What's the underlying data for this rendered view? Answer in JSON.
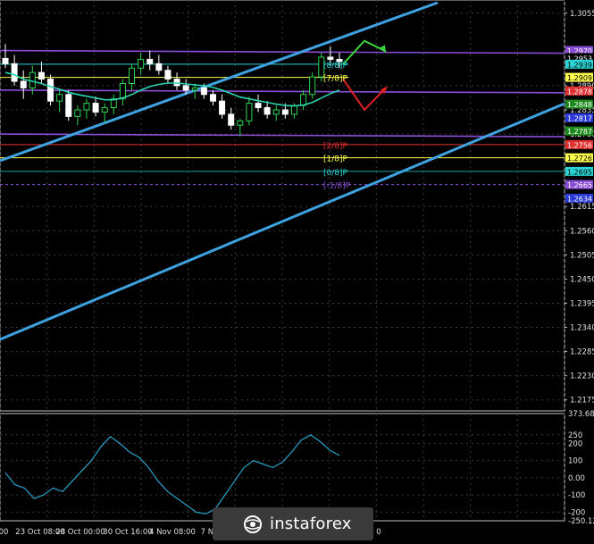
{
  "chart_data": [
    {
      "type": "candlestick",
      "symbol": "GBP/USD",
      "timeframe": "4H",
      "ylim": [
        1.215,
        1.3085
      ],
      "y_ticks": [
        "1.3055",
        "1.2890",
        "1.2835",
        "1.2780",
        "1.2615",
        "1.2560",
        "1.2505",
        "1.2450",
        "1.2395",
        "1.2340",
        "1.2285",
        "1.2230",
        "1.2175"
      ],
      "x_ticks": [
        "00",
        "23 Oct 08:00",
        "28 Oct 00:00",
        "30 Oct 16:00",
        "4 Nov 08:00",
        "7 Nov",
        "0"
      ],
      "price_tags": [
        {
          "label": "1.2970",
          "y": 1.297,
          "color": "#8a4dd6"
        },
        {
          "label": "1.2953",
          "y": 1.2953,
          "color": "#000000"
        },
        {
          "label": "1.2939",
          "y": 1.2939,
          "color": "#2ad4d4"
        },
        {
          "label": "1.2909",
          "y": 1.2909,
          "color": "#ffff4c"
        },
        {
          "label": "1.2878",
          "y": 1.2878,
          "color": "#e03030"
        },
        {
          "label": "1.2848",
          "y": 1.2848,
          "color": "#1e8a1e"
        },
        {
          "label": "1.2817",
          "y": 1.2817,
          "color": "#2a3ad8"
        },
        {
          "label": "1.2787",
          "y": 1.2787,
          "color": "#1e8a1e"
        },
        {
          "label": "1.2756",
          "y": 1.2756,
          "color": "#e03030"
        },
        {
          "label": "1.2726",
          "y": 1.2726,
          "color": "#ffff4c"
        },
        {
          "label": "1.2695",
          "y": 1.2695,
          "color": "#2ad4d4"
        },
        {
          "label": "1.2665",
          "y": 1.2665,
          "color": "#8a4dd6"
        },
        {
          "label": "1.2634",
          "y": 1.2634,
          "color": "#2a3ad8"
        }
      ],
      "murrey_levels": [
        {
          "label": "[8/8]P",
          "y": 1.2939,
          "color": "#2ad4d4"
        },
        {
          "label": "[7/8]P",
          "y": 1.2909,
          "color": "#ffff4c"
        },
        {
          "label": "[2/8]P",
          "y": 1.2756,
          "color": "#e03030"
        },
        {
          "label": "[1/8]P",
          "y": 1.2726,
          "color": "#ffff4c"
        },
        {
          "label": "[0/8]P",
          "y": 1.2695,
          "color": "#2ad4d4"
        },
        {
          "label": "[-1/8]P",
          "y": 1.2665,
          "color": "#8a4dd6"
        }
      ],
      "candles": [
        {
          "o": 1.2952,
          "h": 1.2985,
          "l": 1.293,
          "c": 1.294
        },
        {
          "o": 1.294,
          "h": 1.296,
          "l": 1.289,
          "c": 1.29
        },
        {
          "o": 1.29,
          "h": 1.2925,
          "l": 1.286,
          "c": 1.2885
        },
        {
          "o": 1.2885,
          "h": 1.2935,
          "l": 1.287,
          "c": 1.292
        },
        {
          "o": 1.292,
          "h": 1.2945,
          "l": 1.2895,
          "c": 1.2905
        },
        {
          "o": 1.2905,
          "h": 1.2915,
          "l": 1.2845,
          "c": 1.2855
        },
        {
          "o": 1.2855,
          "h": 1.288,
          "l": 1.283,
          "c": 1.287
        },
        {
          "o": 1.287,
          "h": 1.288,
          "l": 1.281,
          "c": 1.282
        },
        {
          "o": 1.282,
          "h": 1.2845,
          "l": 1.28,
          "c": 1.2835
        },
        {
          "o": 1.2835,
          "h": 1.286,
          "l": 1.2815,
          "c": 1.285
        },
        {
          "o": 1.285,
          "h": 1.2865,
          "l": 1.282,
          "c": 1.283
        },
        {
          "o": 1.283,
          "h": 1.285,
          "l": 1.2805,
          "c": 1.284
        },
        {
          "o": 1.284,
          "h": 1.287,
          "l": 1.2825,
          "c": 1.286
        },
        {
          "o": 1.286,
          "h": 1.2905,
          "l": 1.2845,
          "c": 1.2895
        },
        {
          "o": 1.2895,
          "h": 1.294,
          "l": 1.288,
          "c": 1.293
        },
        {
          "o": 1.293,
          "h": 1.2965,
          "l": 1.2915,
          "c": 1.295
        },
        {
          "o": 1.295,
          "h": 1.297,
          "l": 1.2925,
          "c": 1.294
        },
        {
          "o": 1.294,
          "h": 1.296,
          "l": 1.2915,
          "c": 1.2925
        },
        {
          "o": 1.2925,
          "h": 1.2935,
          "l": 1.2895,
          "c": 1.2905
        },
        {
          "o": 1.2905,
          "h": 1.292,
          "l": 1.288,
          "c": 1.289
        },
        {
          "o": 1.289,
          "h": 1.2905,
          "l": 1.287,
          "c": 1.288
        },
        {
          "o": 1.288,
          "h": 1.2895,
          "l": 1.286,
          "c": 1.2885
        },
        {
          "o": 1.2885,
          "h": 1.2895,
          "l": 1.286,
          "c": 1.287
        },
        {
          "o": 1.287,
          "h": 1.288,
          "l": 1.2845,
          "c": 1.2855
        },
        {
          "o": 1.2855,
          "h": 1.287,
          "l": 1.2815,
          "c": 1.2825
        },
        {
          "o": 1.2825,
          "h": 1.284,
          "l": 1.279,
          "c": 1.28
        },
        {
          "o": 1.28,
          "h": 1.2815,
          "l": 1.2775,
          "c": 1.281
        },
        {
          "o": 1.281,
          "h": 1.2865,
          "l": 1.28,
          "c": 1.285
        },
        {
          "o": 1.285,
          "h": 1.287,
          "l": 1.283,
          "c": 1.284
        },
        {
          "o": 1.284,
          "h": 1.2855,
          "l": 1.2815,
          "c": 1.2825
        },
        {
          "o": 1.2825,
          "h": 1.2845,
          "l": 1.281,
          "c": 1.2835
        },
        {
          "o": 1.2835,
          "h": 1.285,
          "l": 1.2815,
          "c": 1.2825
        },
        {
          "o": 1.2825,
          "h": 1.285,
          "l": 1.2815,
          "c": 1.2845
        },
        {
          "o": 1.2845,
          "h": 1.288,
          "l": 1.2835,
          "c": 1.287
        },
        {
          "o": 1.287,
          "h": 1.292,
          "l": 1.286,
          "c": 1.291
        },
        {
          "o": 1.291,
          "h": 1.2965,
          "l": 1.29,
          "c": 1.2955
        },
        {
          "o": 1.2955,
          "h": 1.298,
          "l": 1.2935,
          "c": 1.295
        },
        {
          "o": 1.295,
          "h": 1.2965,
          "l": 1.293,
          "c": 1.2945
        }
      ],
      "moving_average": [
        1.292,
        1.2915,
        1.2905,
        1.29,
        1.2895,
        1.2888,
        1.2882,
        1.2875,
        1.287,
        1.2866,
        1.2862,
        1.2858,
        1.2858,
        1.2862,
        1.287,
        1.288,
        1.2888,
        1.2893,
        1.2896,
        1.2896,
        1.2894,
        1.2892,
        1.289,
        1.2886,
        1.288,
        1.2872,
        1.2864,
        1.286,
        1.2856,
        1.2852,
        1.2848,
        1.2845,
        1.2844,
        1.2846,
        1.2852,
        1.2862,
        1.2872,
        1.288
      ],
      "forecast": {
        "up": [
          [
            1.2939,
            0
          ],
          [
            1.2992,
            1
          ],
          [
            1.2968,
            2
          ]
        ],
        "down": [
          [
            1.2905,
            0
          ],
          [
            1.2835,
            1
          ],
          [
            1.2885,
            2
          ]
        ]
      }
    },
    {
      "type": "line",
      "indicator": "CCI",
      "ylim": [
        -250,
        373.6844
      ],
      "y_ticks": [
        "373.6844",
        "250",
        "200",
        "100",
        "0.00",
        "-100",
        "-200",
        "-250.124"
      ],
      "values": [
        30,
        -40,
        -60,
        -120,
        -100,
        -60,
        -80,
        -20,
        40,
        100,
        180,
        240,
        200,
        150,
        120,
        60,
        -20,
        -80,
        -120,
        -160,
        -200,
        -210,
        -180,
        -100,
        -20,
        60,
        100,
        80,
        60,
        90,
        150,
        220,
        250,
        210,
        160,
        130
      ]
    }
  ],
  "logo": {
    "text": "instaforex"
  }
}
